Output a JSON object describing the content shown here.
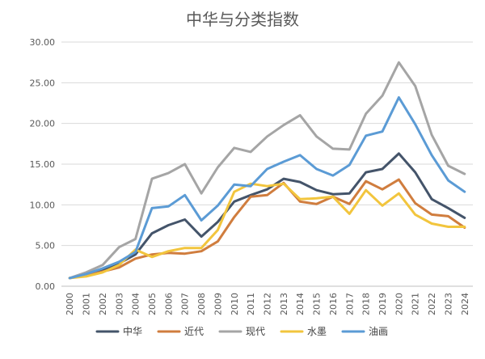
{
  "chart_data": {
    "type": "line",
    "title": "中华与分类指数",
    "xlabel": "",
    "ylabel": "",
    "ylim": [
      0,
      30
    ],
    "yticks": [
      "0.00",
      "5.00",
      "10.00",
      "15.00",
      "20.00",
      "25.00",
      "30.00"
    ],
    "grid": "horizontal",
    "legend_position": "bottom",
    "categories": [
      "2000",
      "2001",
      "2002",
      "2003",
      "2004",
      "2005",
      "2006",
      "2007",
      "2008",
      "2009",
      "2010",
      "2011",
      "2012",
      "2013",
      "2014",
      "2015",
      "2016",
      "2017",
      "2018",
      "2019",
      "2020",
      "2021",
      "2022",
      "2023",
      "2024"
    ],
    "series": [
      {
        "name": "中华",
        "color": "#44546a",
        "values": [
          1.0,
          1.4,
          2.0,
          2.8,
          3.9,
          6.5,
          7.5,
          8.2,
          6.1,
          7.9,
          10.4,
          11.2,
          11.9,
          13.2,
          12.8,
          11.8,
          11.3,
          11.4,
          14.0,
          14.4,
          16.3,
          14.0,
          10.7,
          9.6,
          8.4
        ]
      },
      {
        "name": "近代",
        "color": "#d07d3e",
        "values": [
          1.0,
          1.3,
          1.8,
          2.3,
          3.4,
          3.9,
          4.1,
          4.0,
          4.3,
          5.5,
          8.5,
          11.0,
          11.2,
          12.7,
          10.4,
          10.1,
          11.0,
          10.1,
          12.9,
          11.9,
          13.1,
          10.2,
          8.8,
          8.6,
          7.2
        ]
      },
      {
        "name": "现代",
        "color": "#a5a5a5",
        "values": [
          1.0,
          1.7,
          2.6,
          4.8,
          5.8,
          13.2,
          13.9,
          15.0,
          11.4,
          14.6,
          17.0,
          16.5,
          18.4,
          19.8,
          21.0,
          18.4,
          16.9,
          16.8,
          21.2,
          23.4,
          27.5,
          24.6,
          18.6,
          14.8,
          13.8
        ]
      },
      {
        "name": "水墨",
        "color": "#f2c53d",
        "values": [
          1.0,
          1.2,
          1.7,
          2.6,
          4.5,
          3.6,
          4.3,
          4.7,
          4.7,
          6.9,
          11.6,
          12.6,
          12.3,
          12.6,
          10.7,
          10.8,
          11.0,
          8.9,
          11.8,
          9.9,
          11.4,
          8.8,
          7.7,
          7.3,
          7.3
        ]
      },
      {
        "name": "油画",
        "color": "#5b9bd5",
        "values": [
          1.0,
          1.5,
          2.2,
          3.0,
          4.2,
          9.6,
          9.8,
          11.2,
          8.1,
          9.9,
          12.5,
          12.3,
          14.4,
          15.3,
          16.1,
          14.4,
          13.6,
          14.9,
          18.5,
          19.0,
          23.2,
          19.9,
          16.1,
          13.0,
          11.6
        ]
      }
    ]
  }
}
